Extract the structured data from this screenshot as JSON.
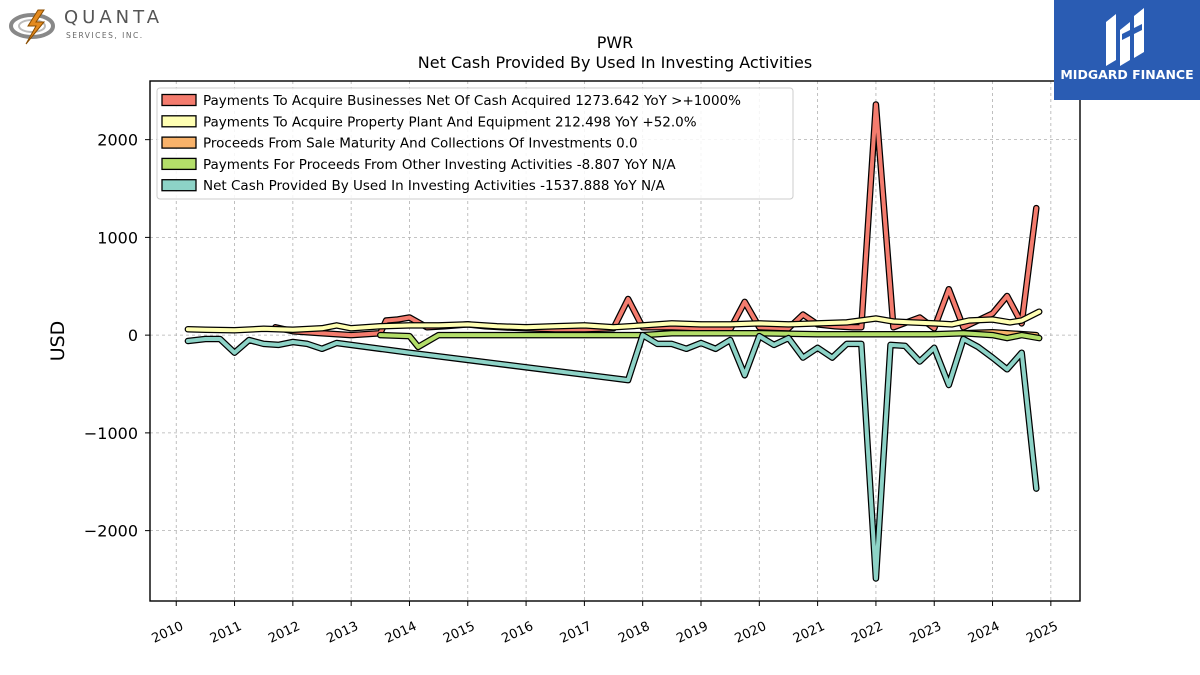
{
  "company_logo": {
    "name": "QUANTA",
    "sub": "SERVICES, INC."
  },
  "brand": {
    "name": "MIDGARD FINANCE",
    "color": "#2a5cb3"
  },
  "chart_data": {
    "type": "line",
    "title": "PWR",
    "subtitle": "Net Cash Provided By Used In Investing Activities",
    "xlabel": "",
    "ylabel": "USD",
    "xlim": [
      2009.55,
      2025.5
    ],
    "ylim": [
      -2720,
      2600
    ],
    "x_ticks": [
      "2010",
      "2011",
      "2012",
      "2013",
      "2014",
      "2015",
      "2016",
      "2017",
      "2018",
      "2019",
      "2020",
      "2021",
      "2022",
      "2023",
      "2024",
      "2025"
    ],
    "y_ticks": [
      2000,
      1000,
      0,
      -1000,
      -2000
    ],
    "y_tick_labels": [
      "2000",
      "1000",
      "0",
      "−1000",
      "−2000"
    ],
    "grid": true,
    "legend_position": "top-left",
    "series": [
      {
        "name": "Payments To Acquire Businesses Net Of Cash Acquired",
        "legend": "Payments To Acquire Businesses Net Of Cash Acquired  1273.642 YoY >+1000%",
        "color": "#f47c6e",
        "points": [
          [
            2011.7,
            80
          ],
          [
            2012.0,
            40
          ],
          [
            2012.5,
            20
          ],
          [
            2013.0,
            0
          ],
          [
            2013.5,
            20
          ],
          [
            2013.6,
            150
          ],
          [
            2013.8,
            160
          ],
          [
            2014.0,
            180
          ],
          [
            2014.3,
            80
          ],
          [
            2014.6,
            90
          ],
          [
            2015.0,
            110
          ],
          [
            2015.3,
            90
          ],
          [
            2015.6,
            80
          ],
          [
            2016.0,
            70
          ],
          [
            2016.5,
            60
          ],
          [
            2017.0,
            60
          ],
          [
            2017.5,
            70
          ],
          [
            2017.75,
            370
          ],
          [
            2018.0,
            80
          ],
          [
            2018.5,
            80
          ],
          [
            2019.0,
            70
          ],
          [
            2019.5,
            60
          ],
          [
            2019.75,
            340
          ],
          [
            2020.0,
            80
          ],
          [
            2020.5,
            70
          ],
          [
            2020.75,
            210
          ],
          [
            2021.0,
            110
          ],
          [
            2021.3,
            90
          ],
          [
            2021.6,
            80
          ],
          [
            2021.75,
            80
          ],
          [
            2022.0,
            2360
          ],
          [
            2022.3,
            80
          ],
          [
            2022.75,
            180
          ],
          [
            2023.0,
            70
          ],
          [
            2023.25,
            470
          ],
          [
            2023.5,
            80
          ],
          [
            2024.0,
            220
          ],
          [
            2024.25,
            400
          ],
          [
            2024.5,
            120
          ],
          [
            2024.75,
            1300
          ]
        ]
      },
      {
        "name": "Payments To Acquire Property Plant And Equipment",
        "legend": "Payments To Acquire Property Plant And Equipment  212.498 YoY +52.0%",
        "color": "#ffffb3",
        "points": [
          [
            2010.2,
            60
          ],
          [
            2010.5,
            55
          ],
          [
            2011.0,
            50
          ],
          [
            2011.5,
            65
          ],
          [
            2012.0,
            55
          ],
          [
            2012.5,
            70
          ],
          [
            2012.75,
            100
          ],
          [
            2013.0,
            70
          ],
          [
            2013.5,
            90
          ],
          [
            2014.0,
            100
          ],
          [
            2014.5,
            100
          ],
          [
            2015.0,
            110
          ],
          [
            2015.5,
            90
          ],
          [
            2016.0,
            80
          ],
          [
            2016.5,
            90
          ],
          [
            2017.0,
            100
          ],
          [
            2017.5,
            80
          ],
          [
            2018.0,
            100
          ],
          [
            2018.5,
            120
          ],
          [
            2019.0,
            110
          ],
          [
            2019.5,
            110
          ],
          [
            2020.0,
            120
          ],
          [
            2020.5,
            110
          ],
          [
            2021.0,
            120
          ],
          [
            2021.5,
            130
          ],
          [
            2022.0,
            170
          ],
          [
            2022.3,
            140
          ],
          [
            2022.6,
            130
          ],
          [
            2023.0,
            120
          ],
          [
            2023.3,
            110
          ],
          [
            2023.6,
            150
          ],
          [
            2024.0,
            160
          ],
          [
            2024.3,
            130
          ],
          [
            2024.5,
            150
          ],
          [
            2024.8,
            240
          ]
        ]
      },
      {
        "name": "Proceeds From Sale Maturity And Collections Of Investments",
        "legend": "Proceeds From Sale Maturity And Collections Of Investments  0.0",
        "color": "#f8b26a",
        "points": [
          [
            2023.5,
            20
          ],
          [
            2024.0,
            30
          ],
          [
            2024.75,
            0
          ]
        ]
      },
      {
        "name": "Payments For Proceeds From Other Investing Activities",
        "legend": "Payments For Proceeds From Other Investing Activities  -8.807 YoY N/A",
        "color": "#b3de69",
        "points": [
          [
            2013.5,
            0
          ],
          [
            2014.0,
            -10
          ],
          [
            2014.15,
            -120
          ],
          [
            2014.5,
            0
          ],
          [
            2015.0,
            0
          ],
          [
            2016.0,
            0
          ],
          [
            2017.0,
            0
          ],
          [
            2018.0,
            0
          ],
          [
            2018.5,
            20
          ],
          [
            2019.0,
            20
          ],
          [
            2020.0,
            20
          ],
          [
            2021.0,
            10
          ],
          [
            2022.0,
            10
          ],
          [
            2023.0,
            10
          ],
          [
            2023.5,
            20
          ],
          [
            2024.0,
            0
          ],
          [
            2024.25,
            -30
          ],
          [
            2024.5,
            0
          ],
          [
            2024.8,
            -30
          ]
        ]
      },
      {
        "name": "Net Cash Provided By Used In Investing Activities",
        "legend": "Net Cash Provided By Used In Investing Activities  -1537.888 YoY N/A",
        "color": "#8dd3c7",
        "points": [
          [
            2010.2,
            -60
          ],
          [
            2010.5,
            -40
          ],
          [
            2010.75,
            -40
          ],
          [
            2011.0,
            -180
          ],
          [
            2011.25,
            -50
          ],
          [
            2011.5,
            -90
          ],
          [
            2011.75,
            -100
          ],
          [
            2012.0,
            -70
          ],
          [
            2012.25,
            -90
          ],
          [
            2012.5,
            -140
          ],
          [
            2012.75,
            -80
          ],
          [
            2014.0,
            -180
          ],
          [
            2017.75,
            -460
          ],
          [
            2018.0,
            0
          ],
          [
            2018.25,
            -90
          ],
          [
            2018.5,
            -90
          ],
          [
            2018.75,
            -140
          ],
          [
            2019.0,
            -80
          ],
          [
            2019.25,
            -140
          ],
          [
            2019.5,
            -50
          ],
          [
            2019.75,
            -410
          ],
          [
            2020.0,
            -10
          ],
          [
            2020.25,
            -100
          ],
          [
            2020.5,
            -30
          ],
          [
            2020.75,
            -230
          ],
          [
            2021.0,
            -130
          ],
          [
            2021.25,
            -230
          ],
          [
            2021.5,
            -90
          ],
          [
            2021.75,
            -90
          ],
          [
            2022.0,
            -2490
          ],
          [
            2022.25,
            -100
          ],
          [
            2022.5,
            -110
          ],
          [
            2022.75,
            -270
          ],
          [
            2023.0,
            -130
          ],
          [
            2023.25,
            -510
          ],
          [
            2023.5,
            -40
          ],
          [
            2023.75,
            -120
          ],
          [
            2024.0,
            -230
          ],
          [
            2024.25,
            -350
          ],
          [
            2024.5,
            -180
          ],
          [
            2024.75,
            -1570
          ]
        ]
      }
    ]
  }
}
